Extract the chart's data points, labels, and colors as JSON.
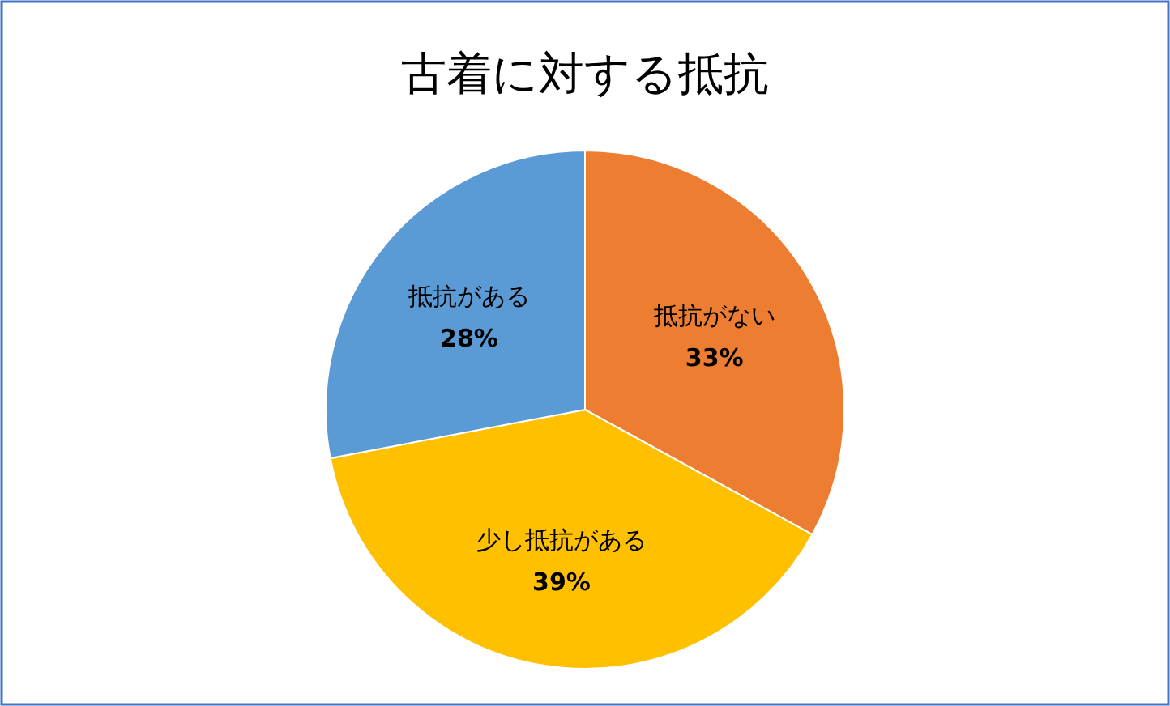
{
  "chart_data": {
    "type": "pie",
    "title": "古着に対する抵抗",
    "categories": [
      "抵抗がない",
      "少し抵抗がある",
      "抵抗がある"
    ],
    "values": [
      33,
      39,
      28
    ],
    "colors": [
      "#ed7d31",
      "#ffc000",
      "#5b9bd5"
    ],
    "value_labels": [
      "33%",
      "39%",
      "28%"
    ]
  }
}
